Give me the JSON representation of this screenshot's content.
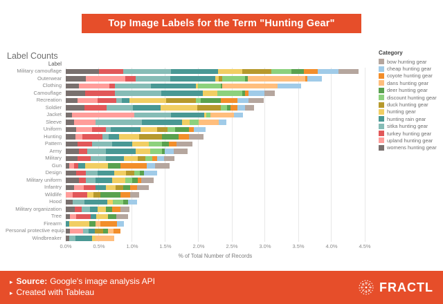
{
  "banner": {
    "title": "Top Image Labels for the Term \"Hunting Gear\"",
    "bg_color": "#E64E2A"
  },
  "sheet_title": "Label Counts",
  "chart_data": {
    "type": "bar",
    "stacked": true,
    "orientation": "horizontal",
    "row_header": "Label",
    "xlabel": "% of Total Number of Records",
    "xlim": [
      0,
      4.5
    ],
    "x_ticks": [
      "0.0%",
      "0.5%",
      "1.0%",
      "1.5%",
      "2.0%",
      "2.5%",
      "3.0%",
      "3.5%",
      "4.0%",
      "4.5%"
    ],
    "grid": true,
    "legend_position": "right",
    "legend_title": "Category",
    "stack_order_note": "segments drawn left-to-right in reverse legend order (womens hunting gear leftmost)",
    "categories": [
      {
        "name": "bow hunting gear",
        "color": "#B5A69E"
      },
      {
        "name": "cheap hunting gear",
        "color": "#A0CBE8"
      },
      {
        "name": "coyote hunting gear",
        "color": "#F28E2B"
      },
      {
        "name": "dans hunting gear",
        "color": "#FFBE7D"
      },
      {
        "name": "deer hunting gear",
        "color": "#59A14F"
      },
      {
        "name": "discount hunting gear",
        "color": "#8CD17D"
      },
      {
        "name": "duck hunting gear",
        "color": "#B6992D"
      },
      {
        "name": "hunting gear",
        "color": "#F1CE63"
      },
      {
        "name": "hunting rain gear",
        "color": "#499894"
      },
      {
        "name": "sitka hunting gear",
        "color": "#86BCB6"
      },
      {
        "name": "turkey hunting gear",
        "color": "#E15759"
      },
      {
        "name": "upland hunting gear",
        "color": "#FF9D9A"
      },
      {
        "name": "womens hunting gear",
        "color": "#79706E"
      }
    ],
    "rows": [
      {
        "label": "Military camouflage",
        "total": 4.41,
        "values": [
          0.31,
          0.31,
          0.21,
          0,
          0.18,
          0.31,
          0.43,
          0.37,
          0.71,
          0.72,
          0.36,
          0,
          0.5
        ]
      },
      {
        "label": "Outerwear",
        "total": 3.85,
        "values": [
          0,
          0.21,
          0.03,
          0.87,
          0.04,
          0.35,
          0.05,
          0.05,
          0.68,
          0.52,
          0.15,
          0.6,
          0.3
        ]
      },
      {
        "label": "Clothing",
        "total": 3.54,
        "values": [
          0,
          0.35,
          0,
          0.83,
          0.03,
          0.34,
          0,
          0.03,
          0.68,
          0.54,
          0.08,
          0.46,
          0.2
        ]
      },
      {
        "label": "Camouflage",
        "total": 3.15,
        "values": [
          0.16,
          0.24,
          0.05,
          0,
          0.04,
          0.38,
          0,
          0.22,
          0.62,
          0.7,
          0.45,
          0,
          0.29
        ]
      },
      {
        "label": "Recreation",
        "total": 2.98,
        "values": [
          0.23,
          0.17,
          0.25,
          0,
          0.3,
          0.07,
          0.45,
          0.55,
          0.12,
          0.08,
          0.28,
          0.3,
          0.18
        ]
      },
      {
        "label": "Soldier",
        "total": 2.83,
        "values": [
          0.13,
          0.12,
          0.1,
          0,
          0.05,
          0.1,
          0.35,
          0.55,
          0.42,
          0.4,
          0.33,
          0,
          0.28
        ]
      },
      {
        "label": "Jacket",
        "total": 2.67,
        "values": [
          0,
          0.14,
          0,
          0.35,
          0,
          0.06,
          0,
          0.04,
          0.5,
          0.55,
          0,
          0.94,
          0.09
        ]
      },
      {
        "label": "Sleeve",
        "total": 2.42,
        "values": [
          0,
          0.12,
          0,
          0.3,
          0,
          0.13,
          0,
          0.12,
          0.6,
          0.7,
          0,
          0.33,
          0.12
        ]
      },
      {
        "label": "Uniform",
        "total": 2.11,
        "values": [
          0,
          0.18,
          0.08,
          0,
          0.2,
          0.12,
          0.15,
          0.25,
          0.45,
          0.08,
          0.2,
          0.24,
          0.16
        ]
      },
      {
        "label": "Hunting",
        "total": 2.07,
        "values": [
          0.22,
          0,
          0.15,
          0,
          0.25,
          0,
          0.35,
          0.3,
          0.15,
          0.1,
          0.3,
          0.1,
          0.15
        ]
      },
      {
        "label": "Pattern",
        "total": 1.91,
        "values": [
          0.24,
          0,
          0.12,
          0,
          0.1,
          0.2,
          0,
          0.25,
          0.3,
          0.3,
          0.22,
          0,
          0.18
        ]
      },
      {
        "label": "Army",
        "total": 1.83,
        "values": [
          0.2,
          0.14,
          0,
          0,
          0.04,
          0.18,
          0,
          0.22,
          0.45,
          0.28,
          0.12,
          0,
          0.2
        ]
      },
      {
        "label": "Military",
        "total": 1.64,
        "values": [
          0.16,
          0.1,
          0.08,
          0,
          0,
          0.1,
          0.12,
          0.2,
          0.28,
          0.22,
          0.2,
          0,
          0.18
        ]
      },
      {
        "label": "Gun",
        "total": 1.56,
        "values": [
          0.22,
          0.12,
          0.4,
          0,
          0.18,
          0,
          0,
          0.35,
          0.1,
          0,
          0.06,
          0.08,
          0.05
        ]
      },
      {
        "label": "Design",
        "total": 1.38,
        "values": [
          0,
          0.2,
          0,
          0,
          0.07,
          0.08,
          0.12,
          0.18,
          0.25,
          0.18,
          0.14,
          0,
          0.16
        ]
      },
      {
        "label": "Military uniform",
        "total": 1.32,
        "values": [
          0.18,
          0,
          0.06,
          0,
          0.08,
          0.1,
          0,
          0.2,
          0.25,
          0.15,
          0.1,
          0,
          0.2
        ]
      },
      {
        "label": "Infantry",
        "total": 1.25,
        "values": [
          0.18,
          0,
          0.1,
          0,
          0.1,
          0,
          0.12,
          0.15,
          0.15,
          0,
          0.18,
          0.15,
          0.12
        ]
      },
      {
        "label": "Wildlife",
        "total": 1.1,
        "values": [
          0.13,
          0,
          0.15,
          0,
          0.3,
          0,
          0.1,
          0.1,
          0,
          0,
          0.22,
          0.1,
          0
        ]
      },
      {
        "label": "Hood",
        "total": 1.07,
        "values": [
          0,
          0.13,
          0,
          0,
          0.08,
          0.15,
          0,
          0.08,
          0.35,
          0.18,
          0,
          0,
          0.1
        ]
      },
      {
        "label": "Military organization",
        "total": 0.96,
        "values": [
          0.14,
          0,
          0.12,
          0,
          0.1,
          0,
          0,
          0.12,
          0.12,
          0.12,
          0.1,
          0,
          0.14
        ]
      },
      {
        "label": "Tree",
        "total": 0.94,
        "values": [
          0.18,
          0,
          0,
          0,
          0.12,
          0,
          0,
          0.18,
          0.08,
          0,
          0.22,
          0.1,
          0.06
        ]
      },
      {
        "label": "Firearm",
        "total": 0.87,
        "values": [
          0,
          0.1,
          0.25,
          0.07,
          0.1,
          0,
          0,
          0.3,
          0.05,
          0,
          0,
          0,
          0
        ]
      },
      {
        "label": "Personal protective equip..",
        "total": 0.82,
        "values": [
          0,
          0,
          0.1,
          0.08,
          0.08,
          0,
          0.12,
          0,
          0.1,
          0.08,
          0,
          0.2,
          0.06
        ]
      },
      {
        "label": "Windbreaker",
        "total": 0.73,
        "values": [
          0,
          0,
          0,
          0.28,
          0,
          0,
          0,
          0.05,
          0.25,
          0.1,
          0,
          0,
          0.05
        ]
      }
    ]
  },
  "footer": {
    "bullet": "▸",
    "source_label": "Source:",
    "source_text": "Google's image analysis API",
    "credit_text": "Created with Tableau",
    "logo_text": "FRACTL",
    "bg_color": "#E64E2A"
  }
}
